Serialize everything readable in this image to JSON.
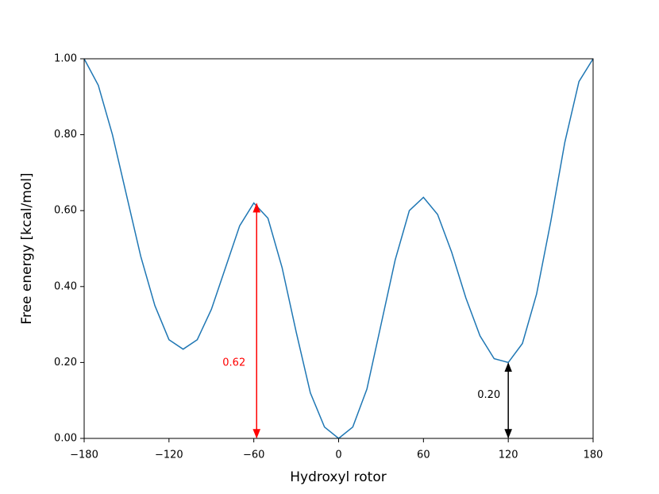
{
  "chart_data": {
    "type": "line",
    "xlabel": "Hydroxyl rotor",
    "ylabel": "Free energy [kcal/mol]",
    "x": [
      -180,
      -170,
      -160,
      -150,
      -140,
      -130,
      -120,
      -110,
      -100,
      -90,
      -80,
      -70,
      -60,
      -50,
      -40,
      -30,
      -20,
      -10,
      0,
      10,
      20,
      30,
      40,
      50,
      60,
      70,
      80,
      90,
      100,
      110,
      120,
      130,
      140,
      150,
      160,
      170,
      180
    ],
    "series": [
      {
        "color": "#1f77b4",
        "values": [
          1.0,
          0.93,
          0.8,
          0.64,
          0.48,
          0.35,
          0.26,
          0.235,
          0.26,
          0.34,
          0.45,
          0.56,
          0.62,
          0.58,
          0.45,
          0.28,
          0.12,
          0.03,
          0.0,
          0.03,
          0.13,
          0.3,
          0.47,
          0.6,
          0.635,
          0.59,
          0.49,
          0.37,
          0.27,
          0.21,
          0.2,
          0.25,
          0.38,
          0.57,
          0.78,
          0.94,
          1.0
        ]
      }
    ],
    "xlim": [
      -180,
      180
    ],
    "xticks": [
      {
        "value": -180,
        "label": "−180"
      },
      {
        "value": -120,
        "label": "−120"
      },
      {
        "value": -60,
        "label": "−60"
      },
      0,
      60,
      120,
      180
    ],
    "ylim": [
      0,
      1
    ],
    "yticks": [
      {
        "value": 0,
        "label": "0.00"
      },
      {
        "value": 0.2,
        "label": "0.20"
      },
      {
        "value": 0.4,
        "label": "0.40"
      },
      {
        "value": 0.6,
        "label": "0.60"
      },
      {
        "value": 0.8,
        "label": "0.80"
      },
      {
        "value": 1,
        "label": "1.00"
      }
    ],
    "annotations": [
      {
        "label": "0.62",
        "x": -58,
        "y": 0.62,
        "color": "#ff0000"
      },
      {
        "label": "0.20",
        "x": 120,
        "y": 0.2,
        "color": "#000000"
      }
    ]
  }
}
